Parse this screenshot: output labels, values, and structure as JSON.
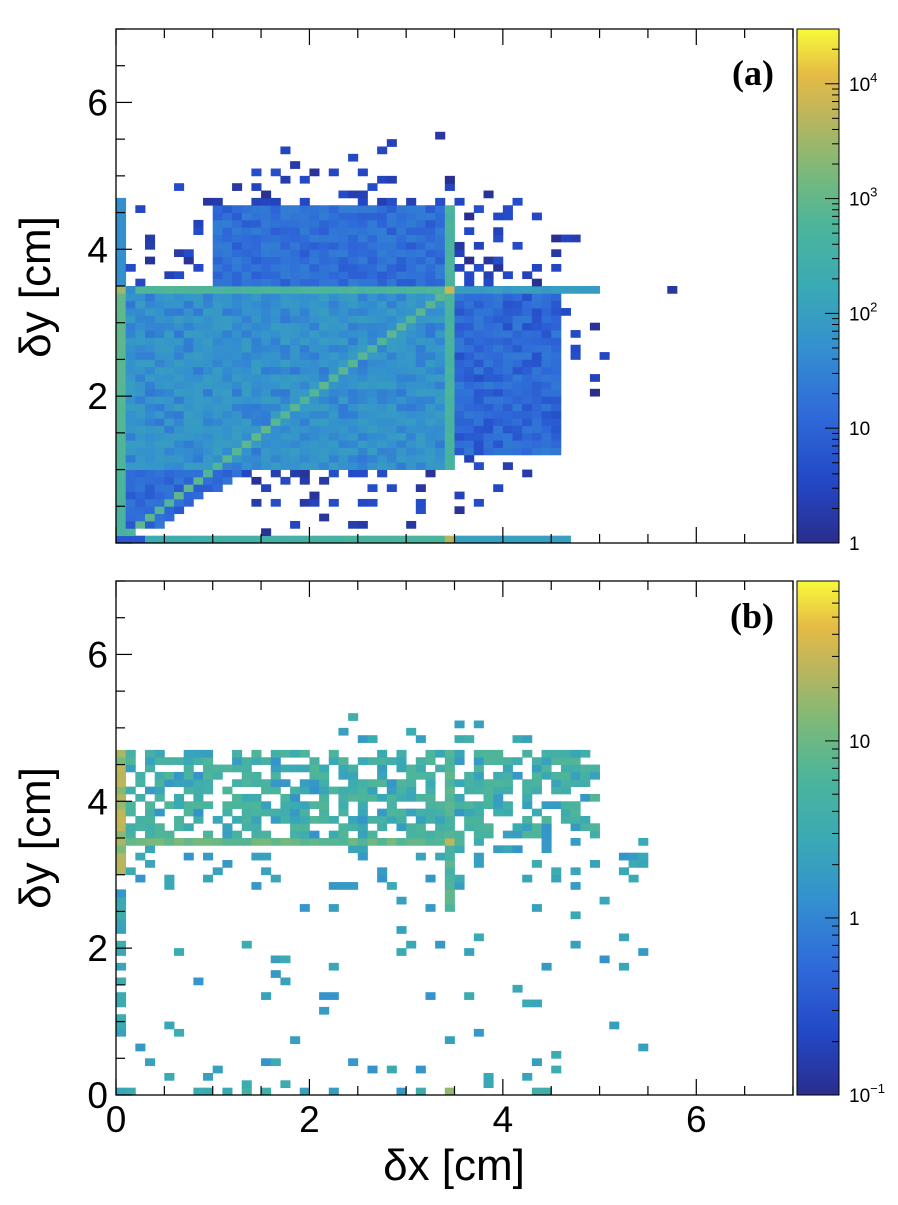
{
  "figure": {
    "xlabel": "δx [cm]",
    "ylabel": "δy [cm]"
  },
  "chart_data": [
    {
      "type": "heatmap",
      "panel_label": "(a)",
      "xlabel": "",
      "ylabel": "δy [cm]",
      "xlim": [
        0,
        7
      ],
      "ylim": [
        0,
        7
      ],
      "x_ticks": [
        0,
        2,
        4,
        6
      ],
      "y_ticks": [
        2,
        4,
        6
      ],
      "y_tick_labels": [
        "2",
        "4",
        "6"
      ],
      "x_tick_labels": [
        "",
        "",
        "",
        ""
      ],
      "bin_width": 0.1,
      "color_scale": "log",
      "z_range": [
        1,
        30000
      ],
      "colorbar_ticks": [
        {
          "value": 1,
          "base": "1",
          "exp": ""
        },
        {
          "value": 10,
          "base": "10",
          "exp": ""
        },
        {
          "value": 100,
          "base": "10",
          "exp": "2"
        },
        {
          "value": 1000,
          "base": "10",
          "exp": "3"
        },
        {
          "value": 10000,
          "base": "10",
          "exp": "4"
        }
      ],
      "features": {
        "uniform_square_region": {
          "x": [
            0.1,
            3.5
          ],
          "y": [
            0.1,
            3.5
          ],
          "count": 40
        },
        "diagonal_peak": {
          "from": 0,
          "to": 3.5,
          "count": 300
        },
        "horizontal_peak_line": {
          "y": 3.45,
          "x": [
            0.2,
            5.0
          ],
          "count": 300
        },
        "vertical_peak_line": {
          "x": 3.45,
          "y": [
            1.0,
            4.6
          ],
          "count": 250
        },
        "x_axis_row": {
          "y": 0.0,
          "x": [
            0,
            4.7
          ],
          "count": 600
        },
        "y_axis_column": {
          "x": 0.0,
          "y": [
            0,
            4.7
          ],
          "count": 500
        },
        "outer_halo_extent": {
          "x": [
            0.1,
            5.8
          ],
          "y": [
            0.3,
            5.6
          ]
        }
      }
    },
    {
      "type": "heatmap",
      "panel_label": "(b)",
      "xlabel": "δx [cm]",
      "ylabel": "δy [cm]",
      "xlim": [
        0,
        7
      ],
      "ylim": [
        0,
        7
      ],
      "x_ticks": [
        0,
        2,
        4,
        6
      ],
      "x_tick_labels": [
        "0",
        "2",
        "4",
        "6"
      ],
      "y_ticks": [
        0,
        2,
        4,
        6
      ],
      "y_tick_labels": [
        "0",
        "2",
        "4",
        "6"
      ],
      "bin_width": 0.1,
      "color_scale": "log",
      "z_range": [
        0.1,
        80
      ],
      "colorbar_ticks": [
        {
          "value": 0.1,
          "base": "10",
          "exp": "−1"
        },
        {
          "value": 1,
          "base": "1",
          "exp": ""
        },
        {
          "value": 10,
          "base": "10",
          "exp": ""
        }
      ],
      "features": {
        "dense_band": {
          "x": [
            0.1,
            5.0
          ],
          "y": [
            3.5,
            4.7
          ],
          "typical_count": 2.5
        },
        "horizontal_peak_line": {
          "y": 3.45,
          "x": [
            0.1,
            3.5
          ],
          "count": 6
        },
        "hot_spot": {
          "x": 3.45,
          "y": 3.45,
          "count": 20
        },
        "vertical_streak": {
          "x": 3.45,
          "y": [
            2.5,
            4.7
          ],
          "count": 4
        },
        "y_axis_column": {
          "x": 0.0,
          "y": [
            3.0,
            4.7
          ],
          "count": 15
        },
        "sparse_region": {
          "x": [
            0.1,
            5.5
          ],
          "y": [
            0.1,
            3.3
          ],
          "count": 1
        }
      }
    }
  ]
}
